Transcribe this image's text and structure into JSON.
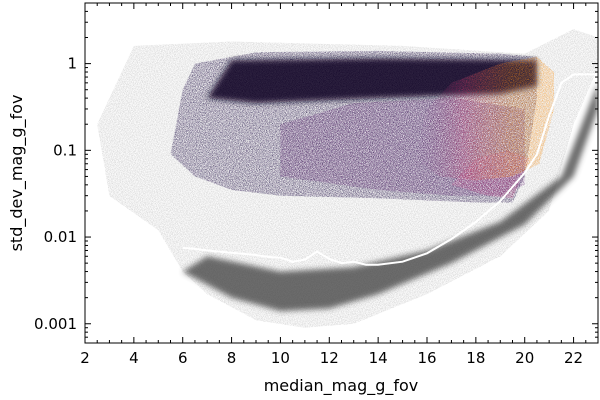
{
  "chart_data": {
    "type": "scatter",
    "title": "",
    "xlabel": "median_mag_g_fov",
    "ylabel": "std_dev_mag_g_fov",
    "xlim": [
      2,
      23
    ],
    "ylim": [
      0.0006,
      5
    ],
    "yscale": "log",
    "grid": false,
    "legend": "none",
    "x_ticks": [
      2,
      4,
      6,
      8,
      10,
      12,
      14,
      16,
      18,
      20,
      22
    ],
    "y_ticks": [
      0.001,
      0.01,
      0.1,
      1
    ],
    "x_tick_labels": [
      "2",
      "4",
      "6",
      "8",
      "10",
      "12",
      "14",
      "16",
      "18",
      "20",
      "22"
    ],
    "y_tick_labels": [
      "0.001",
      "0.01",
      "0.1",
      "1"
    ],
    "colors": {
      "background_density": "#8c8c8c",
      "dark_cluster": "#1b0c41",
      "purple_cluster": "#5b1f6e",
      "magenta_cluster": "#b5367a",
      "orange_cluster": "#f9951c",
      "median_curve": "#ffffff"
    },
    "series": [
      {
        "kind": "median_line",
        "x": [
          6.0,
          6.5,
          7.0,
          7.5,
          8.0,
          8.5,
          9.0,
          9.5,
          10.0,
          10.5,
          11.0,
          11.5,
          12.0,
          12.5,
          13.0,
          13.5,
          14.0,
          15.0,
          16.0,
          17.0,
          18.0,
          19.0,
          20.0,
          20.5,
          21.0,
          21.5,
          22.0,
          23.0
        ],
        "y": [
          0.0075,
          0.0073,
          0.007,
          0.0068,
          0.0066,
          0.0064,
          0.0062,
          0.0059,
          0.0058,
          0.0052,
          0.0055,
          0.0068,
          0.0056,
          0.005,
          0.0052,
          0.0048,
          0.0048,
          0.0052,
          0.0065,
          0.0095,
          0.015,
          0.026,
          0.055,
          0.09,
          0.25,
          0.6,
          0.75,
          0.75
        ]
      }
    ]
  }
}
